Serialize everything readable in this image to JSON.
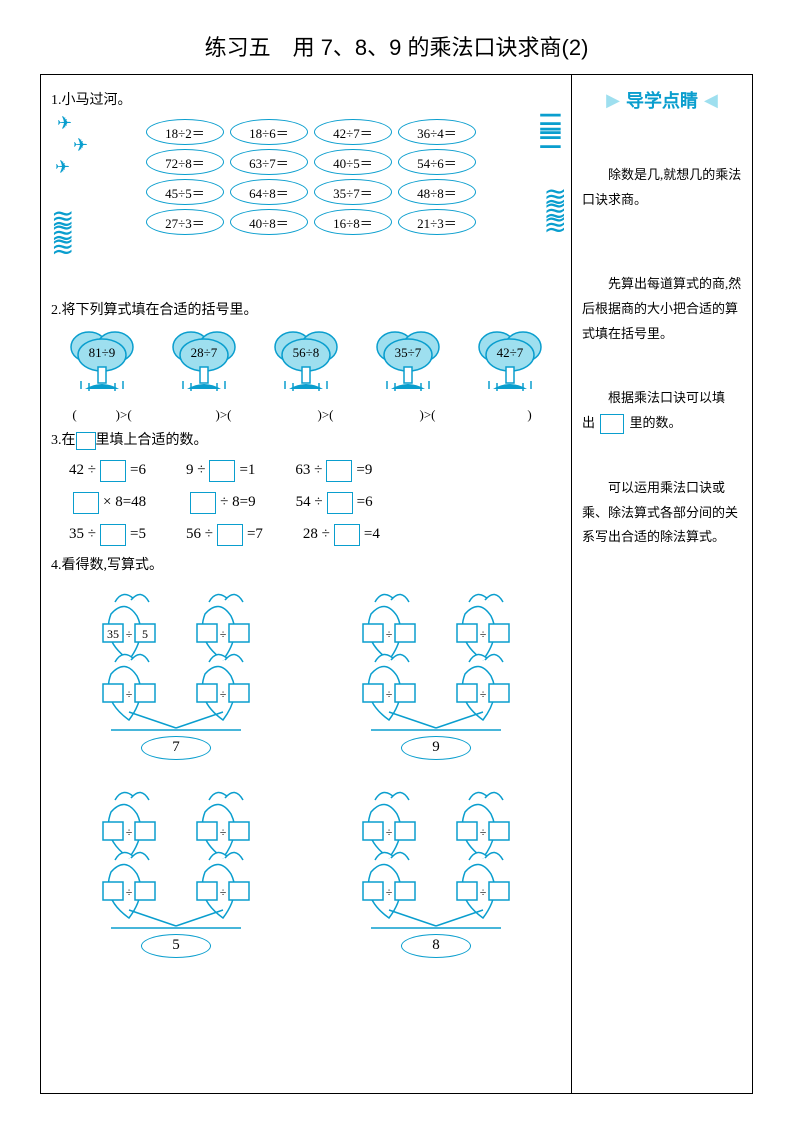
{
  "title": "练习五　用 7、8、9 的乘法口诀求商(2)",
  "colors": {
    "accent": "#0a9ece",
    "accent_light": "#9edfef",
    "text": "#000000",
    "bg": "#ffffff"
  },
  "q1": {
    "label": "1.小马过河。",
    "rows": [
      [
        "18÷2＝",
        "18÷6＝",
        "42÷7＝",
        "36÷4＝"
      ],
      [
        "72÷8＝",
        "63÷7＝",
        "40÷5＝",
        "54÷6＝"
      ],
      [
        "45÷5＝",
        "64÷8＝",
        "35÷7＝",
        "48÷8＝"
      ],
      [
        "27÷3＝",
        "40÷8＝",
        "16÷8＝",
        "21÷3＝"
      ]
    ]
  },
  "q2": {
    "label": "2.将下列算式填在合适的括号里。",
    "trees": [
      "81÷9",
      "28÷7",
      "56÷8",
      "35÷7",
      "42÷7"
    ],
    "compare": [
      "(　　　)>(",
      "　　　)>(",
      "　　　)>(",
      "　　　)>(",
      "　　　)"
    ]
  },
  "q3": {
    "label_prefix": "3.在",
    "label_suffix": "里填上合适的数。",
    "rows": [
      [
        {
          "pre": "42 ÷",
          "post": "=6"
        },
        {
          "pre": "9 ÷",
          "post": "=1"
        },
        {
          "pre": "63 ÷",
          "post": "=9"
        }
      ],
      [
        {
          "pre": "",
          "post": "× 8=48"
        },
        {
          "pre": "",
          "post": "÷ 8=9"
        },
        {
          "pre": "54 ÷",
          "post": "=6"
        }
      ],
      [
        {
          "pre": "35 ÷",
          "post": "=5"
        },
        {
          "pre": "56 ÷",
          "post": "=7"
        },
        {
          "pre": "28 ÷",
          "post": "=4"
        }
      ]
    ]
  },
  "q4": {
    "label": "4.看得数,写算式。",
    "pots": [
      {
        "num": "7",
        "sample": {
          "a": "35",
          "b": "5"
        }
      },
      {
        "num": "9",
        "sample": null
      },
      {
        "num": "5",
        "sample": null
      },
      {
        "num": "8",
        "sample": null
      }
    ]
  },
  "side": {
    "banner": "导学点睛",
    "tips": [
      "除数是几,就想几的乘法口诀求商。",
      "先算出每道算式的商,然后根据商的大小把合适的算式填在括号里。",
      "根据乘法口诀可以填出 □ 里的数。",
      "可以运用乘法口诀或乘、除法算式各部分间的关系写出合适的除法算式。"
    ]
  }
}
